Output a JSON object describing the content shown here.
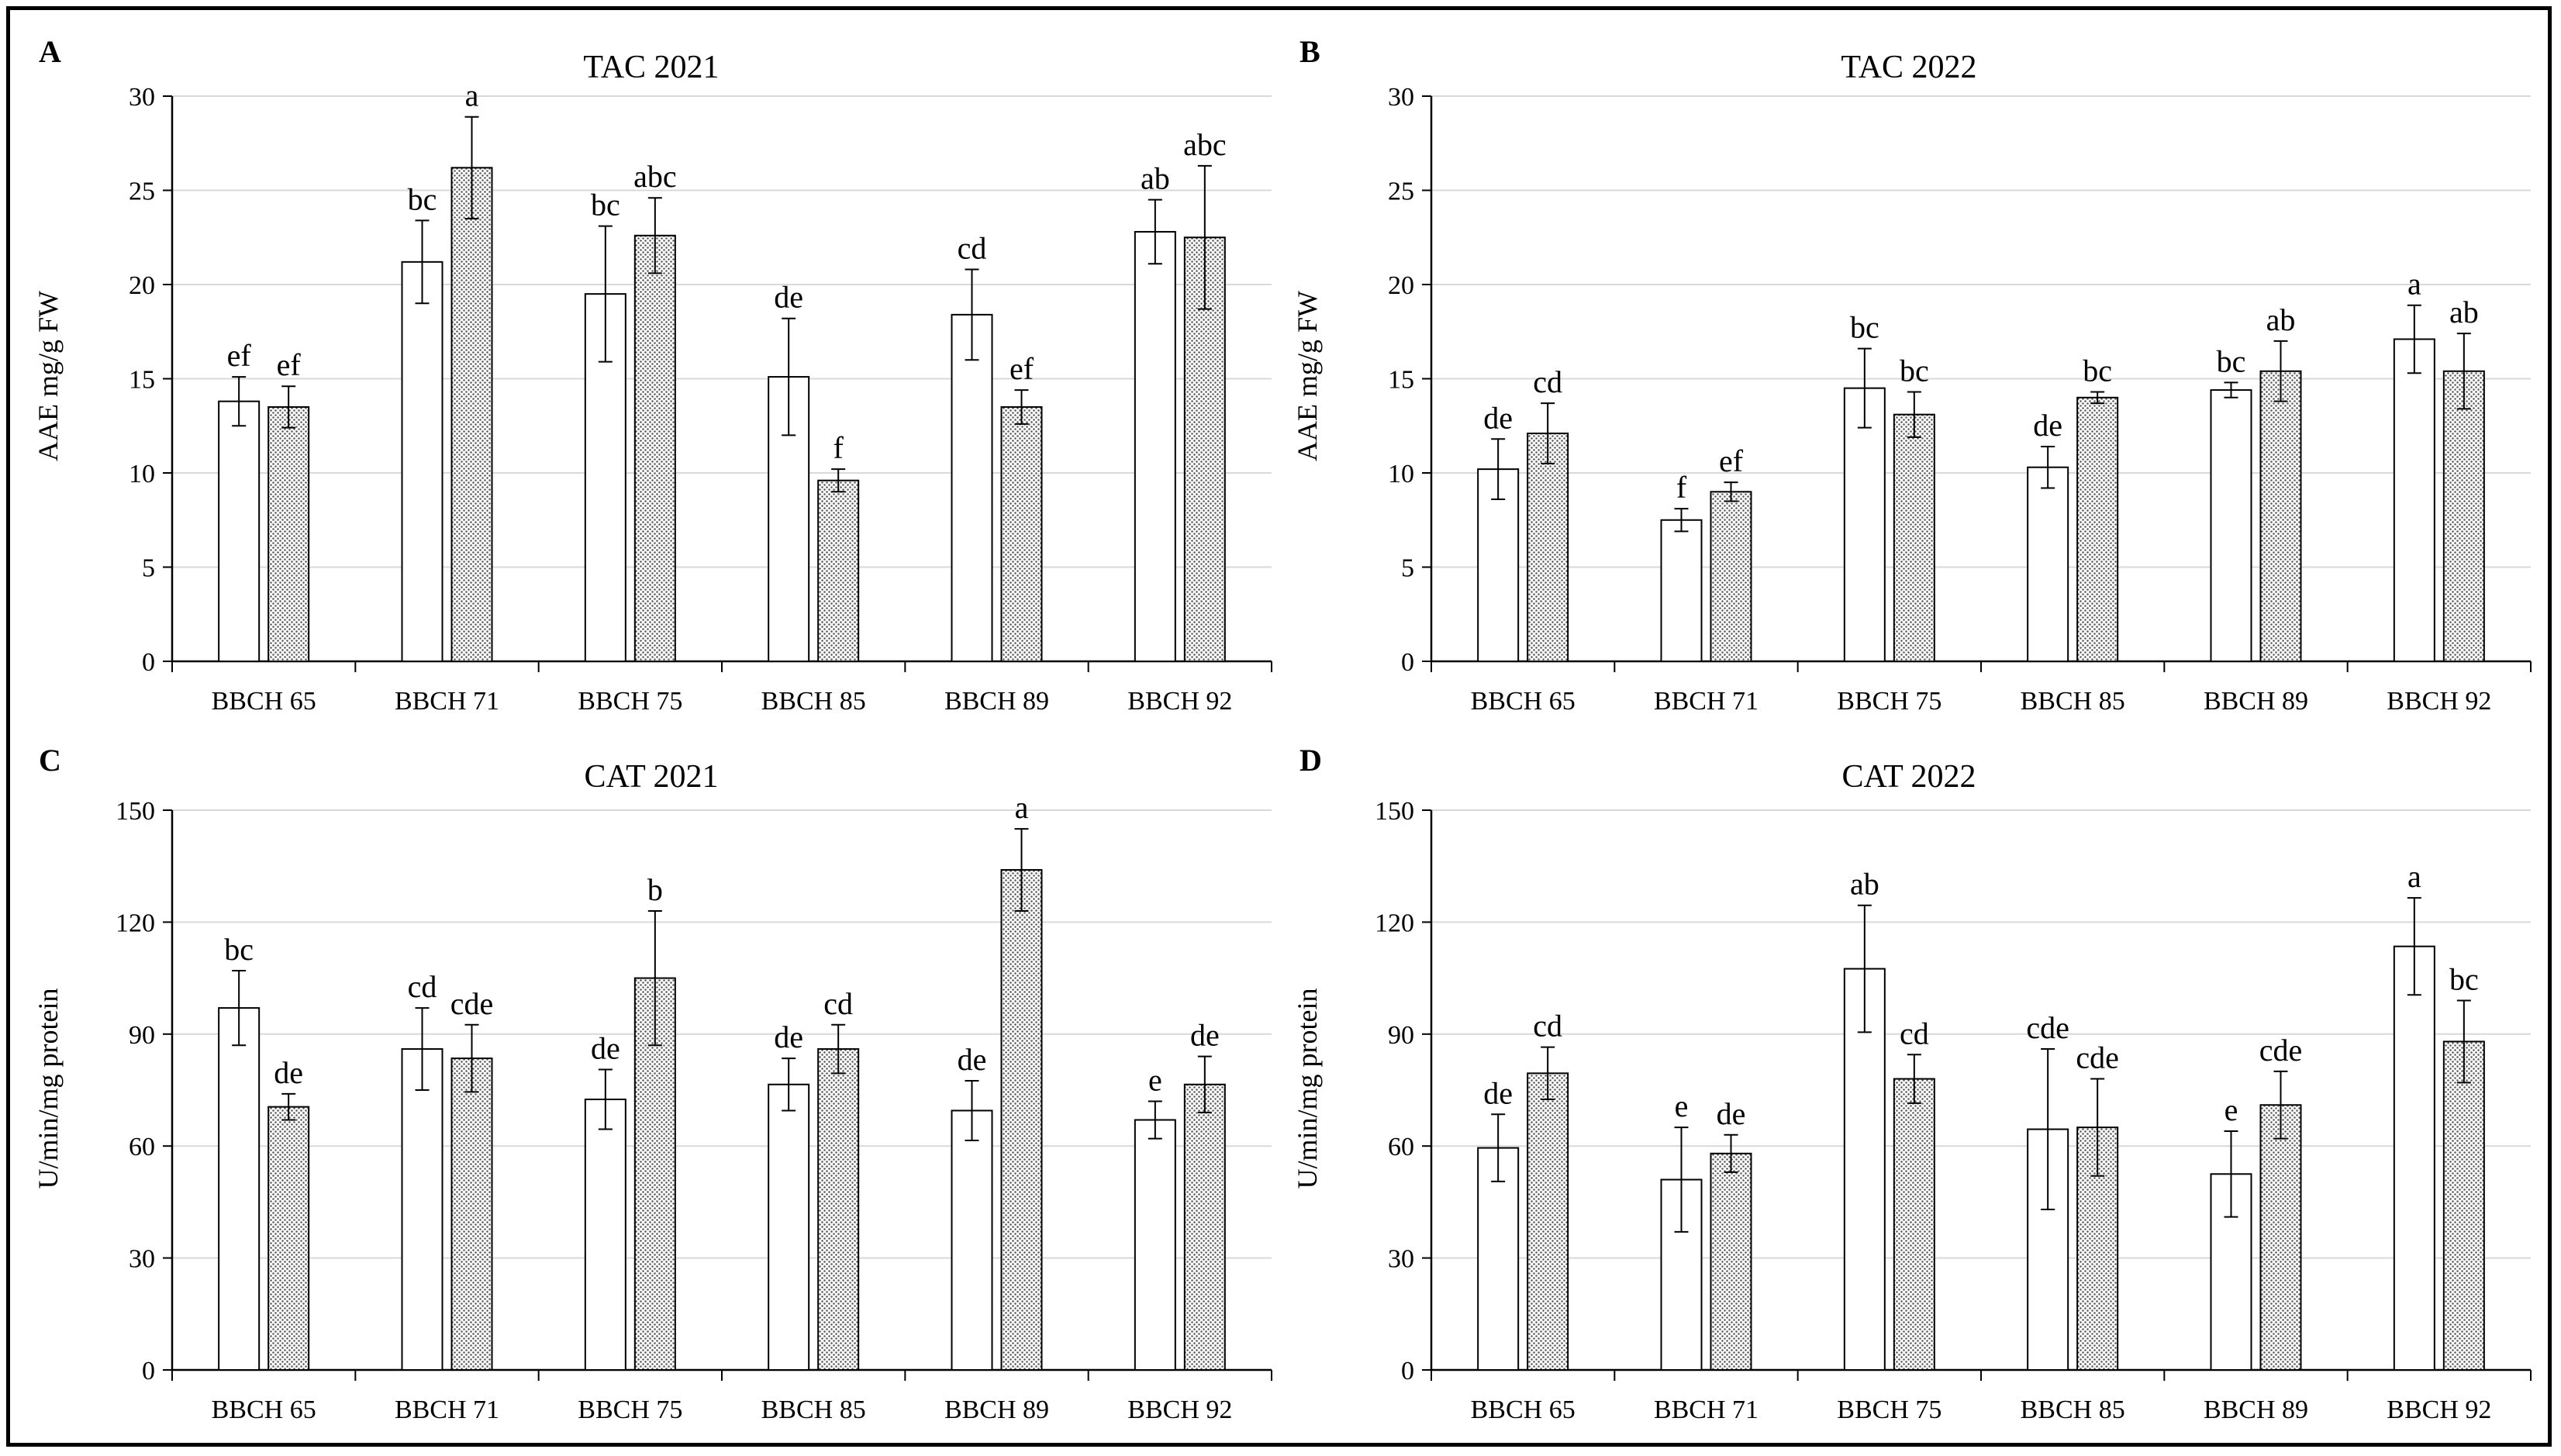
{
  "colors": {
    "frame": "#000000",
    "grid": "#d9d9d9",
    "axis": "#000000",
    "bar_outline": "#000000",
    "bar_open_fill": "#ffffff",
    "bar_dotted_fill": "#d0d0d0",
    "text": "#000000"
  },
  "chart_data": [
    {
      "panel": "A",
      "type": "bar",
      "title": "TAC 2021",
      "xlabel": "",
      "ylabel": "AAE mg/g FW",
      "ylim": [
        0,
        30
      ],
      "yticks": [
        0,
        5,
        10,
        15,
        20,
        25,
        30
      ],
      "grid": true,
      "categories": [
        "BBCH 65",
        "BBCH 71",
        "BBCH 75",
        "BBCH 85",
        "BBCH  89",
        "BBCH  92"
      ],
      "series": [
        {
          "name": "open",
          "values": [
            13.8,
            21.2,
            19.5,
            15.1,
            18.4,
            22.8
          ],
          "errors": [
            1.3,
            2.2,
            3.6,
            3.1,
            2.4,
            1.7
          ],
          "labels": [
            "ef",
            "bc",
            "bc",
            "de",
            "cd",
            "ab"
          ]
        },
        {
          "name": "dotted",
          "values": [
            13.5,
            26.2,
            22.6,
            9.6,
            13.5,
            22.5
          ],
          "errors": [
            1.1,
            2.7,
            2.0,
            0.6,
            0.9,
            3.8
          ],
          "labels": [
            "ef",
            "a",
            "abc",
            "f",
            "ef",
            "abc"
          ]
        }
      ]
    },
    {
      "panel": "B",
      "type": "bar",
      "title": "TAC 2022",
      "xlabel": "",
      "ylabel": "AAE mg/g FW",
      "ylim": [
        0,
        30
      ],
      "yticks": [
        0,
        5,
        10,
        15,
        20,
        25,
        30
      ],
      "grid": true,
      "categories": [
        "BBCH 65",
        "BBCH 71",
        "BBCH 75",
        "BBCH 85",
        "BBCH  89",
        "BBCH  92"
      ],
      "series": [
        {
          "name": "open",
          "values": [
            10.2,
            7.5,
            14.5,
            10.3,
            14.4,
            17.1
          ],
          "errors": [
            1.6,
            0.6,
            2.1,
            1.1,
            0.4,
            1.8
          ],
          "labels": [
            "de",
            "f",
            "bc",
            "de",
            "bc",
            "a"
          ]
        },
        {
          "name": "dotted",
          "values": [
            12.1,
            9.0,
            13.1,
            14.0,
            15.4,
            15.4
          ],
          "errors": [
            1.6,
            0.5,
            1.2,
            0.3,
            1.6,
            2.0
          ],
          "labels": [
            "cd",
            "ef",
            "bc",
            "bc",
            "ab",
            "ab"
          ]
        }
      ]
    },
    {
      "panel": "C",
      "type": "bar",
      "title": "CAT 2021",
      "xlabel": "",
      "ylabel": "U/min/mg protein",
      "ylim": [
        0,
        150
      ],
      "yticks": [
        0,
        30,
        60,
        90,
        120,
        150
      ],
      "grid": true,
      "categories": [
        "BBCH 65",
        "BBCH 71",
        "BBCH 75",
        "BBCH 85",
        "BBCH 89",
        "BBCH 92"
      ],
      "series": [
        {
          "name": "open",
          "values": [
            97,
            86,
            72.5,
            76.5,
            69.5,
            67
          ],
          "errors": [
            10,
            11,
            8,
            7,
            8,
            5
          ],
          "labels": [
            "bc",
            "cd",
            "de",
            "de",
            "de",
            "e"
          ]
        },
        {
          "name": "dotted",
          "values": [
            70.5,
            83.5,
            105,
            86,
            134,
            76.5
          ],
          "errors": [
            3.5,
            9,
            18,
            6.5,
            11,
            7.5
          ],
          "labels": [
            "de",
            "cde",
            "b",
            "cd",
            "a",
            "de"
          ]
        }
      ]
    },
    {
      "panel": "D",
      "type": "bar",
      "title": "CAT 2022",
      "xlabel": "",
      "ylabel": "U/min/mg protein",
      "ylim": [
        0,
        150
      ],
      "yticks": [
        0,
        30,
        60,
        90,
        120,
        150
      ],
      "grid": true,
      "categories": [
        "BBCH 65",
        "BBCH 71",
        "BBCH 75",
        "BBCH 85",
        "BBCH  89",
        "BBCH  92"
      ],
      "series": [
        {
          "name": "open",
          "values": [
            59.5,
            51,
            107.5,
            64.5,
            52.5,
            113.5
          ],
          "errors": [
            9,
            14,
            17,
            21.5,
            11.5,
            13
          ],
          "labels": [
            "de",
            "e",
            "ab",
            "cde",
            "e",
            "a"
          ]
        },
        {
          "name": "dotted",
          "values": [
            79.5,
            58,
            78,
            65,
            71,
            88
          ],
          "errors": [
            7,
            5,
            6.5,
            13,
            9,
            11
          ],
          "labels": [
            "cd",
            "de",
            "cd",
            "cde",
            "cde",
            "bc"
          ]
        }
      ]
    }
  ]
}
